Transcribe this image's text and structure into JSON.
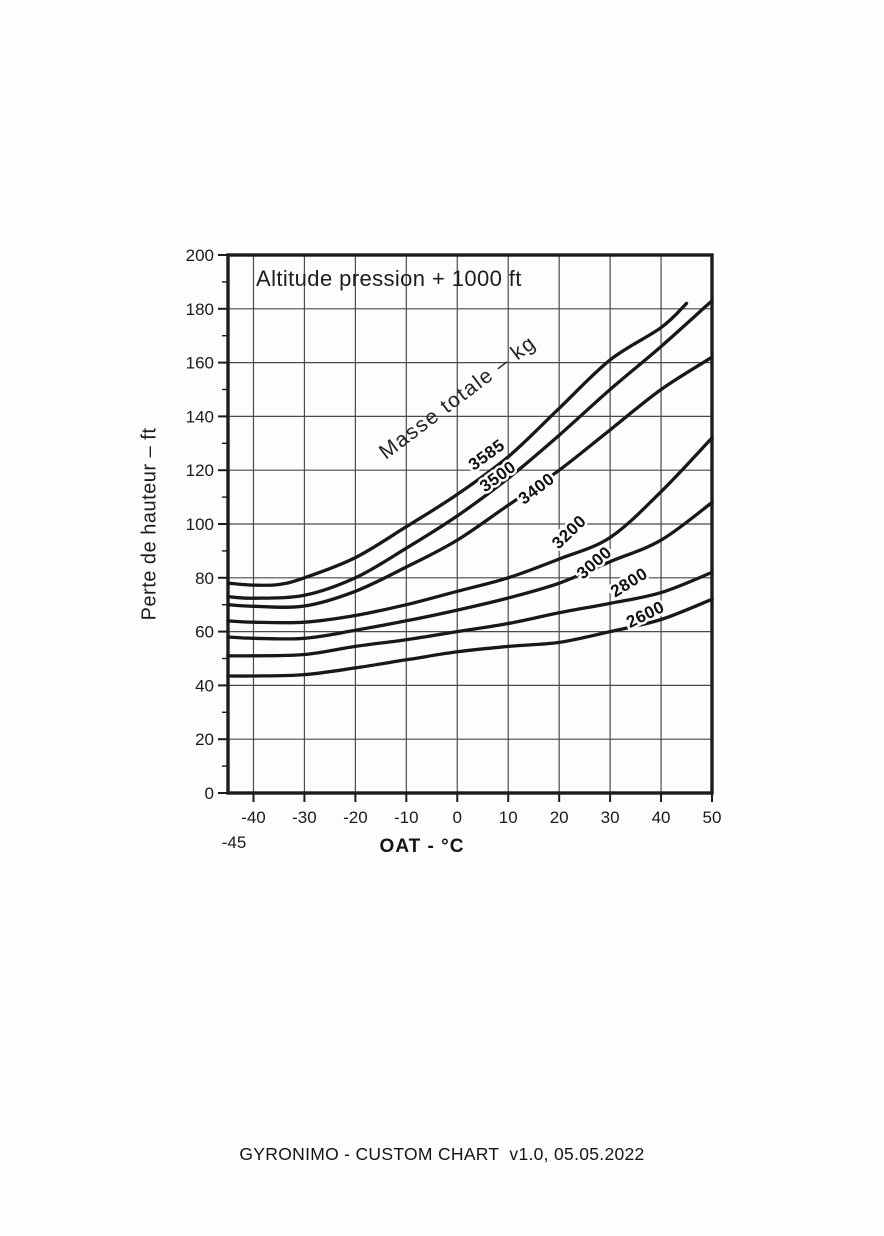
{
  "page": {
    "footer": "GYRONIMO - CUSTOM CHART  v1.0, 05.05.2022"
  },
  "chart_data": {
    "type": "line",
    "title": "Altitude pression + 1000 ft",
    "xlabel": "OAT - °C",
    "ylabel": "Perte de hauteur – ft",
    "series_label": "Masse totale – kg",
    "xlim": [
      -45,
      50
    ],
    "ylim": [
      0,
      200
    ],
    "x_ticks": [
      -40,
      -30,
      -20,
      -10,
      0,
      10,
      20,
      30,
      40,
      50
    ],
    "x_edge_tick_label": "-45",
    "y_ticks": [
      0,
      20,
      40,
      60,
      80,
      100,
      120,
      140,
      160,
      180,
      200
    ],
    "grid": true,
    "legend_position": "labels-on-curves",
    "series": [
      {
        "name": "3585",
        "points": [
          [
            -45,
            78
          ],
          [
            -40,
            77.3
          ],
          [
            -35,
            77.5
          ],
          [
            -30,
            80
          ],
          [
            -20,
            87.5
          ],
          [
            -10,
            99
          ],
          [
            0,
            111
          ],
          [
            10,
            125
          ],
          [
            20,
            143
          ],
          [
            30,
            161
          ],
          [
            40,
            173
          ],
          [
            45,
            182
          ]
        ],
        "label": [
          6.4,
          124,
          -36
        ]
      },
      {
        "name": "3500",
        "points": [
          [
            -45,
            73
          ],
          [
            -40,
            72.4
          ],
          [
            -30,
            73.5
          ],
          [
            -20,
            80
          ],
          [
            -10,
            91
          ],
          [
            0,
            103
          ],
          [
            10,
            117
          ],
          [
            20,
            133
          ],
          [
            30,
            150
          ],
          [
            40,
            166
          ],
          [
            50,
            183
          ]
        ],
        "label": [
          8.6,
          116,
          -36
        ]
      },
      {
        "name": "3400",
        "points": [
          [
            -45,
            70
          ],
          [
            -40,
            69.4
          ],
          [
            -30,
            69.5
          ],
          [
            -20,
            75
          ],
          [
            -10,
            84
          ],
          [
            0,
            94
          ],
          [
            10,
            107
          ],
          [
            20,
            120
          ],
          [
            30,
            135
          ],
          [
            40,
            150
          ],
          [
            50,
            162
          ]
        ],
        "label": [
          16.2,
          111.5,
          -37
        ]
      },
      {
        "name": "3200",
        "points": [
          [
            -45,
            64
          ],
          [
            -40,
            63.5
          ],
          [
            -30,
            63.5
          ],
          [
            -20,
            66
          ],
          [
            -10,
            70
          ],
          [
            0,
            75
          ],
          [
            10,
            80
          ],
          [
            20,
            87
          ],
          [
            30,
            95
          ],
          [
            40,
            112
          ],
          [
            50,
            132
          ]
        ],
        "label": [
          22.7,
          95.5,
          -44
        ]
      },
      {
        "name": "3000",
        "points": [
          [
            -45,
            58
          ],
          [
            -40,
            57.5
          ],
          [
            -30,
            57.5
          ],
          [
            -20,
            60.5
          ],
          [
            -10,
            64
          ],
          [
            0,
            68
          ],
          [
            10,
            72.5
          ],
          [
            20,
            78
          ],
          [
            30,
            86
          ],
          [
            40,
            94
          ],
          [
            50,
            108
          ]
        ],
        "label": [
          27.6,
          84,
          -41
        ]
      },
      {
        "name": "2800",
        "points": [
          [
            -45,
            51
          ],
          [
            -40,
            51
          ],
          [
            -30,
            51.5
          ],
          [
            -20,
            54.5
          ],
          [
            -10,
            57
          ],
          [
            0,
            60
          ],
          [
            10,
            63
          ],
          [
            20,
            67
          ],
          [
            30,
            70.5
          ],
          [
            40,
            74.5
          ],
          [
            50,
            82
          ]
        ],
        "label": [
          34.3,
          76.5,
          -32
        ]
      },
      {
        "name": "2600",
        "points": [
          [
            -45,
            43.5
          ],
          [
            -40,
            43.5
          ],
          [
            -30,
            44
          ],
          [
            -20,
            46.5
          ],
          [
            -10,
            49.5
          ],
          [
            0,
            52.5
          ],
          [
            10,
            54.5
          ],
          [
            20,
            56
          ],
          [
            30,
            60
          ],
          [
            40,
            64.5
          ],
          [
            50,
            72
          ]
        ],
        "label": [
          37.4,
          64.5,
          -26
        ]
      }
    ]
  }
}
